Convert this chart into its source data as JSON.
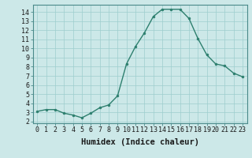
{
  "x": [
    0,
    1,
    2,
    3,
    4,
    5,
    6,
    7,
    8,
    9,
    10,
    11,
    12,
    13,
    14,
    15,
    16,
    17,
    18,
    19,
    20,
    21,
    22,
    23
  ],
  "y": [
    3.1,
    3.3,
    3.3,
    2.9,
    2.7,
    2.4,
    2.9,
    3.5,
    3.8,
    4.8,
    8.3,
    10.2,
    11.7,
    13.5,
    14.3,
    14.3,
    14.3,
    13.3,
    11.1,
    9.3,
    8.3,
    8.1,
    7.3,
    6.9
  ],
  "line_color": "#2d7f6e",
  "marker_color": "#2d7f6e",
  "bg_color": "#cce8e8",
  "grid_color": "#9ecece",
  "xlabel": "Humidex (Indice chaleur)",
  "xlim": [
    -0.5,
    23.5
  ],
  "ylim": [
    1.8,
    14.8
  ],
  "yticks": [
    2,
    3,
    4,
    5,
    6,
    7,
    8,
    9,
    10,
    11,
    12,
    13,
    14
  ],
  "xticks": [
    0,
    1,
    2,
    3,
    4,
    5,
    6,
    7,
    8,
    9,
    10,
    11,
    12,
    13,
    14,
    15,
    16,
    17,
    18,
    19,
    20,
    21,
    22,
    23
  ],
  "tick_label_size": 6,
  "xlabel_size": 7.5
}
